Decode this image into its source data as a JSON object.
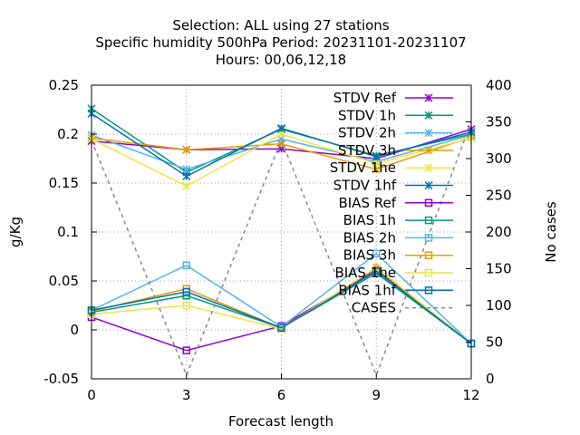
{
  "chart_data": {
    "type": "line",
    "title_lines": [
      "Selection: ALL using    27 stations",
      "Specific humidity 500hPa   Period: 20231101-20231107",
      "Hours:  00,06,12,18"
    ],
    "xlabel": "Forecast length",
    "ylabel": "g/Kg",
    "y2label": "No cases",
    "x": [
      0,
      3,
      6,
      9,
      12
    ],
    "xlim": [
      0,
      12
    ],
    "ylim": [
      -0.05,
      0.25
    ],
    "y2lim": [
      0,
      400
    ],
    "x_ticks": [
      "0",
      "3",
      "6",
      "9",
      "12"
    ],
    "y_ticks": [
      "-0.05",
      "0",
      "0.05",
      "0.1",
      "0.15",
      "0.2",
      "0.25"
    ],
    "y2_ticks": [
      "0",
      "50",
      "100",
      "150",
      "200",
      "250",
      "300",
      "350",
      "400"
    ],
    "grid": true,
    "legend_position": "top-right",
    "series": [
      {
        "name": "STDV Ref",
        "color": "#9400d3",
        "marker": "x-star",
        "values": [
          0.193,
          0.184,
          0.185,
          0.175,
          0.205
        ]
      },
      {
        "name": "STDV 1h",
        "color": "#009e73",
        "marker": "x-star",
        "values": [
          0.226,
          0.161,
          0.205,
          0.178,
          0.2
        ]
      },
      {
        "name": "STDV 2h",
        "color": "#56b4e9",
        "marker": "x-star",
        "values": [
          0.199,
          0.164,
          0.195,
          0.172,
          0.199
        ]
      },
      {
        "name": "STDV 3h",
        "color": "#e69f00",
        "marker": "x-star",
        "values": [
          0.196,
          0.184,
          0.19,
          0.164,
          0.197
        ]
      },
      {
        "name": "STDV 1he",
        "color": "#f0e442",
        "marker": "x-star",
        "values": [
          0.195,
          0.147,
          0.2,
          0.17,
          0.196
        ]
      },
      {
        "name": "STDV 1hf",
        "color": "#0072b2",
        "marker": "x-star",
        "values": [
          0.221,
          0.157,
          0.206,
          0.177,
          0.202
        ]
      },
      {
        "name": "BIAS Ref",
        "color": "#9400d3",
        "marker": "square",
        "values": [
          0.013,
          -0.021,
          0.004,
          0.061,
          -0.014
        ]
      },
      {
        "name": "BIAS 1h",
        "color": "#009e73",
        "marker": "square",
        "values": [
          0.018,
          0.035,
          0.002,
          0.058,
          -0.014
        ]
      },
      {
        "name": "BIAS 2h",
        "color": "#56b4e9",
        "marker": "square",
        "values": [
          0.02,
          0.066,
          0.003,
          0.078,
          -0.014
        ]
      },
      {
        "name": "BIAS 3h",
        "color": "#e69f00",
        "marker": "square",
        "values": [
          0.019,
          0.042,
          0.002,
          0.063,
          -0.014
        ]
      },
      {
        "name": "BIAS 1he",
        "color": "#f0e442",
        "marker": "square",
        "values": [
          0.016,
          0.025,
          0.001,
          0.064,
          -0.014
        ]
      },
      {
        "name": "BIAS 1hf",
        "color": "#0072b2",
        "marker": "square",
        "values": [
          0.02,
          0.039,
          0.002,
          0.06,
          -0.014
        ]
      },
      {
        "name": "CASES",
        "color": "#888888",
        "marker": "none",
        "dashed": true,
        "axis": "y2",
        "values": [
          325,
          5,
          325,
          5,
          350
        ]
      }
    ]
  }
}
